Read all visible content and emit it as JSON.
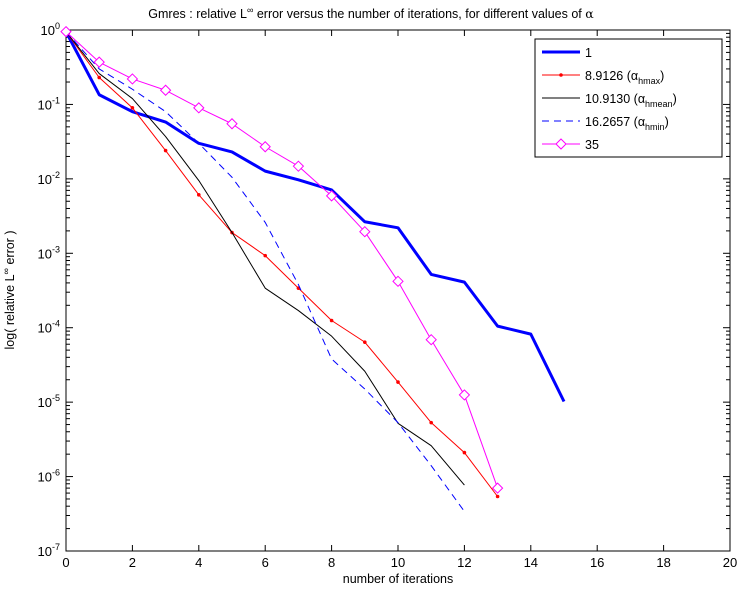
{
  "chart_data": {
    "type": "line",
    "title": {
      "prefix": "Gmres : relative L",
      "superscript": "∞",
      "middle": " error versus the number of iterations, for different values of ",
      "symbol": "α"
    },
    "xlabel": "number of iterations",
    "ylabel": {
      "prefix": "log( relative L",
      "superscript": "∞",
      "suffix": " error )"
    },
    "xlim": [
      0,
      20
    ],
    "ylim": [
      1e-07,
      1
    ],
    "yscale": "log",
    "grid": false,
    "legend_position": "top-right",
    "xticks": [
      "0",
      "2",
      "4",
      "6",
      "8",
      "10",
      "12",
      "14",
      "16",
      "18",
      "20"
    ],
    "yticks": [
      {
        "base": "10",
        "exp": "0"
      },
      {
        "base": "10",
        "exp": "-1"
      },
      {
        "base": "10",
        "exp": "-2"
      },
      {
        "base": "10",
        "exp": "-3"
      },
      {
        "base": "10",
        "exp": "-4"
      },
      {
        "base": "10",
        "exp": "-5"
      },
      {
        "base": "10",
        "exp": "-6"
      },
      {
        "base": "10",
        "exp": "-7"
      }
    ],
    "series": [
      {
        "name": "1",
        "name_subscript": "",
        "color": "#0000ff",
        "style": "solid-thick",
        "marker": "none",
        "x": [
          0,
          1,
          2,
          3,
          4,
          5,
          6,
          7,
          8,
          9,
          10,
          11,
          12,
          13,
          14,
          15
        ],
        "y": [
          0.95,
          0.135,
          0.08,
          0.058,
          0.03,
          0.023,
          0.0127,
          0.0097,
          0.0071,
          0.00265,
          0.0022,
          0.00052,
          0.00041,
          0.000105,
          8.2e-05,
          1.02e-05
        ]
      },
      {
        "name": "8.9126 (α",
        "name_subscript": "hmax",
        "color": "#ff0000",
        "style": "solid",
        "marker": "dot",
        "x": [
          0,
          1,
          2,
          3,
          4,
          5,
          6,
          7,
          8,
          9,
          10,
          11,
          12,
          13
        ],
        "y": [
          0.95,
          0.23,
          0.09,
          0.024,
          0.0061,
          0.0019,
          0.00093,
          0.00034,
          0.000125,
          6.4e-05,
          1.86e-05,
          5.3e-06,
          2.1e-06,
          5.4e-07
        ]
      },
      {
        "name": "10.9130 (α",
        "name_subscript": "hmean",
        "color": "#000000",
        "style": "solid",
        "marker": "none",
        "x": [
          0,
          1,
          2,
          3,
          4,
          5,
          6,
          7,
          8,
          9,
          10,
          11,
          12
        ],
        "y": [
          0.95,
          0.26,
          0.12,
          0.037,
          0.0095,
          0.0019,
          0.00034,
          0.00017,
          7.7e-05,
          2.6e-05,
          5.2e-06,
          2.6e-06,
          7.7e-07
        ]
      },
      {
        "name": "16.2657 (α",
        "name_subscript": "hmin",
        "color": "#0000ff",
        "style": "dashed",
        "marker": "none",
        "x": [
          0,
          1,
          2,
          3,
          4,
          5,
          6,
          7,
          8,
          9,
          10,
          11,
          12
        ],
        "y": [
          0.95,
          0.3,
          0.16,
          0.08,
          0.03,
          0.0105,
          0.0026,
          0.00038,
          3.8e-05,
          1.5e-05,
          5.3e-06,
          1.4e-06,
          3.4e-07
        ]
      },
      {
        "name": "35",
        "name_subscript": "",
        "color": "#ff00ff",
        "style": "solid",
        "marker": "diamond",
        "x": [
          0,
          1,
          2,
          3,
          4,
          5,
          6,
          7,
          8,
          9,
          10,
          11,
          12,
          13
        ],
        "y": [
          0.95,
          0.37,
          0.22,
          0.155,
          0.09,
          0.055,
          0.027,
          0.0148,
          0.0059,
          0.00195,
          0.00042,
          6.9e-05,
          1.25e-05,
          7e-07
        ]
      }
    ]
  }
}
